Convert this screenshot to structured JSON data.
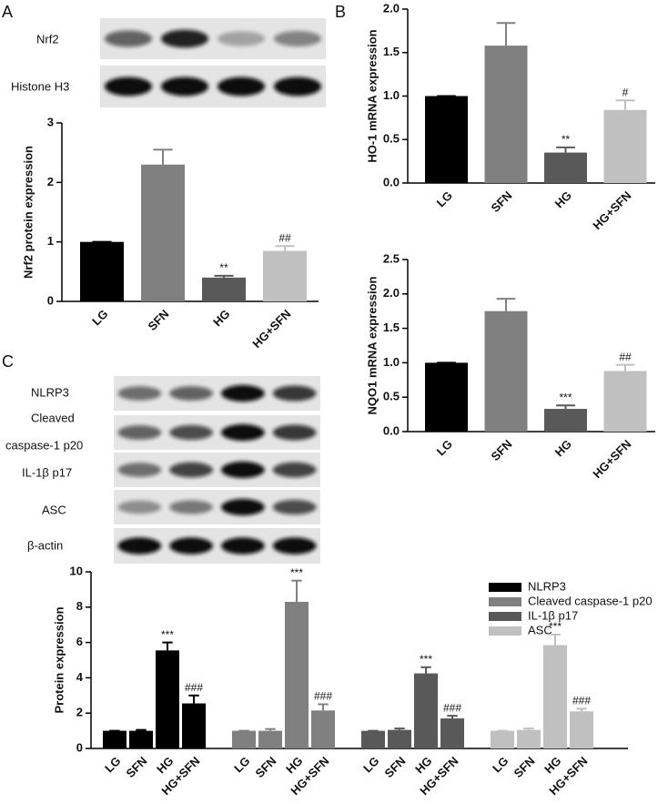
{
  "panel_labels": [
    "A",
    "B",
    "C"
  ],
  "blots": {
    "A": [
      "Nrf2",
      "Histone H3"
    ],
    "C": [
      "NLRP3",
      "Cleaved",
      "caspase-1 p20",
      "IL-1β p17",
      "ASC",
      "β-actin"
    ]
  },
  "chart_data": [
    {
      "type": "bar",
      "ylabel": "Nrf2 protein expression",
      "categories": [
        "LG",
        "SFN",
        "HG",
        "HG+SFN"
      ],
      "values": [
        1.0,
        2.3,
        0.4,
        0.85
      ],
      "errors": [
        0,
        0.25,
        0.03,
        0.08
      ],
      "annotations": [
        null,
        null,
        "**",
        "##"
      ],
      "colors": [
        "#000000",
        "#808080",
        "#595959",
        "#c0c0c0"
      ],
      "ylim": [
        0,
        3
      ],
      "yticks": [
        0,
        1,
        2,
        3
      ]
    },
    {
      "type": "bar",
      "ylabel": "HO-1 mRNA expression",
      "categories": [
        "LG",
        "SFN",
        "HG",
        "HG+SFN"
      ],
      "values": [
        1.0,
        1.58,
        0.35,
        0.84
      ],
      "errors": [
        0,
        0.26,
        0.06,
        0.11
      ],
      "annotations": [
        null,
        null,
        "**",
        "#"
      ],
      "colors": [
        "#000000",
        "#808080",
        "#595959",
        "#c0c0c0"
      ],
      "ylim": [
        0,
        2
      ],
      "yticks": [
        {
          "value": 0,
          "label": "0.0"
        },
        0.5,
        {
          "value": 1,
          "label": "1.0"
        },
        1.5,
        {
          "value": 2,
          "label": "2.0"
        }
      ]
    },
    {
      "type": "bar",
      "ylabel": "NQO1 mRNA expression",
      "categories": [
        "LG",
        "SFN",
        "HG",
        "HG+SFN"
      ],
      "values": [
        1.0,
        1.75,
        0.33,
        0.88
      ],
      "errors": [
        0,
        0.18,
        0.05,
        0.09
      ],
      "annotations": [
        null,
        null,
        "***",
        "##"
      ],
      "colors": [
        "#000000",
        "#808080",
        "#595959",
        "#c0c0c0"
      ],
      "ylim": [
        0,
        2.5
      ],
      "yticks": [
        {
          "value": 0,
          "label": "0.0"
        },
        0.5,
        {
          "value": 1,
          "label": "1.0"
        },
        1.5,
        {
          "value": 2,
          "label": "2.0"
        },
        2.5
      ]
    },
    {
      "type": "bar",
      "ylabel": "Protein expression",
      "categories": [
        "LG",
        "SFN",
        "HG",
        "HG+SFN"
      ],
      "series": [
        {
          "name": "NLRP3",
          "color": "#000000",
          "values": [
            1.0,
            1.0,
            5.55,
            2.55
          ],
          "errors": [
            0,
            0.05,
            0.45,
            0.45
          ],
          "annotations": [
            null,
            null,
            "***",
            "###"
          ]
        },
        {
          "name": "Cleaved caspase-1 p20",
          "color": "#808080",
          "values": [
            1.0,
            1.0,
            8.3,
            2.15
          ],
          "errors": [
            0,
            0.1,
            1.2,
            0.35
          ],
          "annotations": [
            null,
            null,
            "***",
            "###"
          ]
        },
        {
          "name": "IL-1β p17",
          "color": "#595959",
          "values": [
            1.0,
            1.05,
            4.25,
            1.7
          ],
          "errors": [
            0,
            0.08,
            0.35,
            0.15
          ],
          "annotations": [
            null,
            null,
            "***",
            "###"
          ]
        },
        {
          "name": "ASC",
          "color": "#c0c0c0",
          "values": [
            1.0,
            1.05,
            5.85,
            2.1
          ],
          "errors": [
            0,
            0.08,
            0.6,
            0.15
          ],
          "annotations": [
            null,
            null,
            "***",
            "###"
          ]
        }
      ],
      "ylim": [
        0,
        10
      ],
      "yticks": [
        0,
        2,
        4,
        6,
        8,
        10
      ]
    }
  ]
}
